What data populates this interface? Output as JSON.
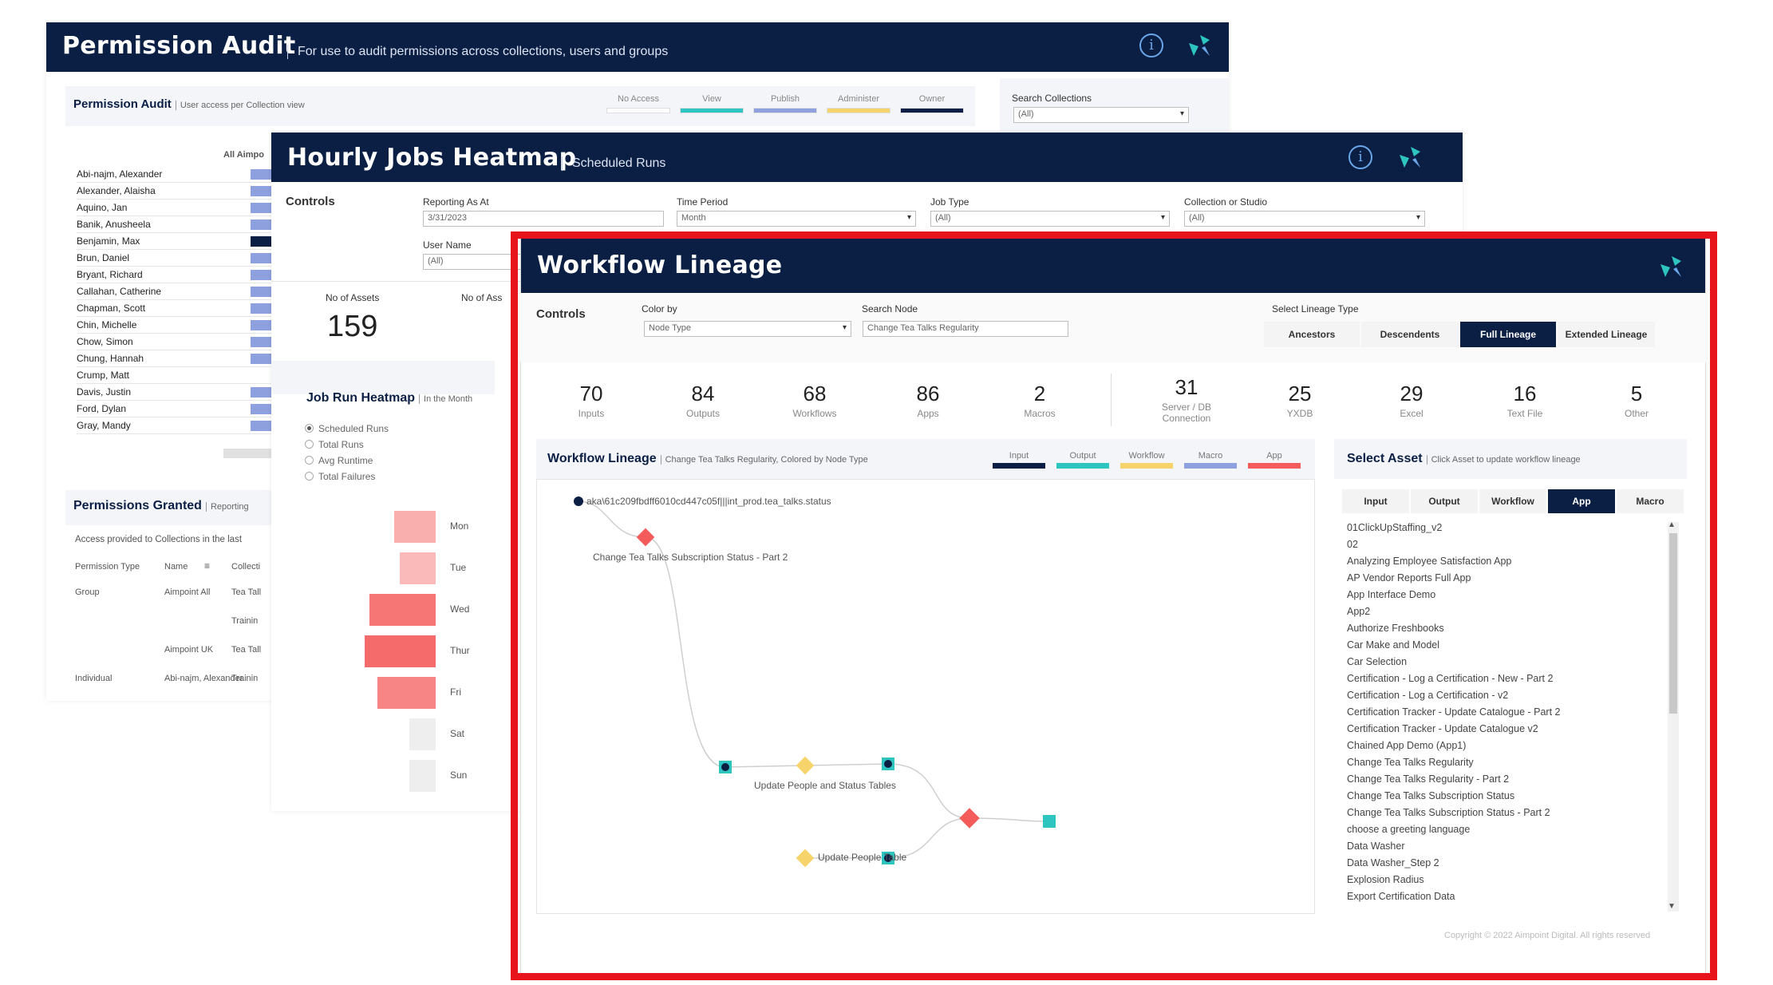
{
  "colors": {
    "navy": "#0b1f45",
    "red_frame": "#e8141b",
    "view": "#2ec4c0",
    "publish": "#8ea0de",
    "administer": "#f7d46b",
    "owner": "#0b1f45",
    "input": "#0b1f45",
    "output": "#2ec4c0",
    "workflow": "#f7d46b",
    "macro": "#8ea0de",
    "app": "#f45b5b"
  },
  "permission_audit": {
    "title": "Permission Audit",
    "subtitle": "For use to audit permissions across collections, users and groups",
    "section_title": "Permission Audit",
    "section_sub": "User access per Collection view",
    "legend": [
      "No Access",
      "View",
      "Publish",
      "Administer",
      "Owner"
    ],
    "search_label": "Search Collections",
    "search_value": "(All)",
    "col_header": "All Aimpo",
    "names": [
      "Abi-najm, Alexander",
      "Alexander, Alaisha",
      "Aquino, Jan",
      "Banik, Anusheela",
      "Benjamin, Max",
      "Brun, Daniel",
      "Bryant, Richard",
      "Callahan, Catherine",
      "Chapman, Scott",
      "Chin, Michelle",
      "Chow, Simon",
      "Chung, Hannah",
      "Crump, Matt",
      "Davis, Justin",
      "Ford, Dylan",
      "Gray, Mandy"
    ],
    "granted_title": "Permissions Granted",
    "granted_sub": "Reporting",
    "granted_desc": "Access provided to Collections in the last",
    "granted_headers": [
      "Permission Type",
      "Name",
      "Collecti"
    ],
    "granted_rows": [
      {
        "type": "Group",
        "name": "Aimpoint All",
        "coll": "Tea Tall"
      },
      {
        "type": "",
        "name": "",
        "coll": "Trainin"
      },
      {
        "type": "",
        "name": "Aimpoint UK",
        "coll": "Tea Tall"
      },
      {
        "type": "Individual",
        "name": "Abi-najm, Alexander",
        "coll": "Trainin"
      }
    ]
  },
  "heatmap": {
    "title": "Hourly Jobs Heatmap",
    "subtitle": "Scheduled Runs",
    "controls": "Controls",
    "reporting_label": "Reporting As At",
    "reporting_value": "3/31/2023",
    "time_label": "Time Period",
    "time_value": "Month",
    "jobtype_label": "Job Type",
    "jobtype_value": "(All)",
    "collection_label": "Collection or Studio",
    "collection_value": "(All)",
    "user_label": "User Name",
    "user_value": "(All)",
    "assets_label": "No of Assets",
    "assets_value": "159",
    "assets_label2": "No of Ass",
    "run_title": "Job Run Heatmap",
    "run_sub": "In the Month",
    "radios": [
      "Scheduled Runs",
      "Total Runs",
      "Avg Runtime",
      "Total Failures"
    ],
    "days": [
      "Mon",
      "Tue",
      "Wed",
      "Thur",
      "Fri",
      "Sat",
      "Sun"
    ],
    "day_intensity": [
      0.35,
      0.25,
      0.85,
      0.95,
      0.7,
      0.05,
      0.05
    ]
  },
  "lineage": {
    "title": "Workflow Lineage",
    "controls": "Controls",
    "color_label": "Color by",
    "color_value": "Node Type",
    "search_label": "Search Node",
    "search_value": "Change Tea Talks Regularity",
    "type_label": "Select Lineage Type",
    "lineage_types": [
      "Ancestors",
      "Descendents",
      "Full Lineage",
      "Extended Lineage"
    ],
    "stats": [
      {
        "v": "70",
        "l": "Inputs"
      },
      {
        "v": "84",
        "l": "Outputs"
      },
      {
        "v": "68",
        "l": "Workflows"
      },
      {
        "v": "86",
        "l": "Apps"
      },
      {
        "v": "2",
        "l": "Macros"
      },
      {
        "v": "31",
        "l": "Server / DB Connection"
      },
      {
        "v": "25",
        "l": "YXDB"
      },
      {
        "v": "29",
        "l": "Excel"
      },
      {
        "v": "16",
        "l": "Text File"
      },
      {
        "v": "5",
        "l": "Other"
      }
    ],
    "graph_title": "Workflow Lineage",
    "graph_sub": "Change Tea Talks Regularity, Colored by Node Type",
    "legend": [
      "Input",
      "Output",
      "Workflow",
      "Macro",
      "App"
    ],
    "node_labels": {
      "source": "aka\\61c209fbdff6010cd447c05f|||int_prod.tea_talks.status",
      "app1": "Change Tea Talks Subscription Status - Part 2",
      "wf1": "Update People and Status Tables",
      "wf2": "Update People Table"
    },
    "asset_title": "Select Asset",
    "asset_sub": "Click Asset to update workflow lineage",
    "asset_tabs": [
      "Input",
      "Output",
      "Workflow",
      "App",
      "Macro"
    ],
    "assets": [
      "01ClickUpStaffing_v2",
      "02",
      "Analyzing Employee Satisfaction App",
      "AP Vendor Reports Full App",
      "App Interface Demo",
      "App2",
      "Authorize Freshbooks",
      "Car Make and Model",
      "Car Selection",
      "Certification - Log a Certification - New - Part 2",
      "Certification - Log a Certification - v2",
      "Certification Tracker - Update Catalogue - Part 2",
      "Certification Tracker - Update Catalogue v2",
      "Chained App Demo (App1)",
      "Change Tea Talks Regularity",
      "Change Tea Talks Regularity - Part 2",
      "Change Tea Talks Subscription Status",
      "Change Tea Talks Subscription Status - Part 2",
      "choose a greeting language",
      "Data Washer",
      "Data Washer_Step 2",
      "Explosion Radius",
      "Export Certification Data"
    ],
    "footer": "Copyright © 2022 Aimpoint Digital. All rights reserved"
  }
}
